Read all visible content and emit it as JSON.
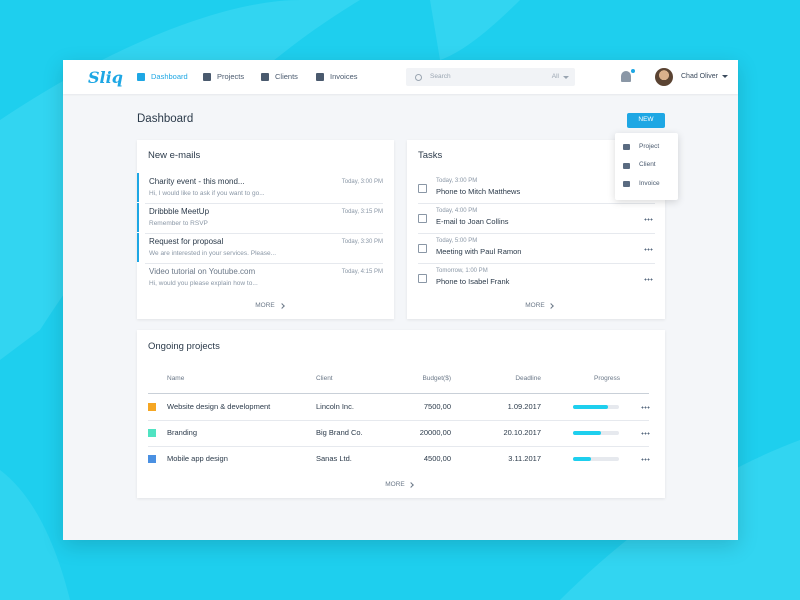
{
  "header": {
    "logo": "Sliq",
    "nav": [
      "Dashboard",
      "Projects",
      "Clients",
      "Invoices"
    ],
    "search_placeholder": "Search",
    "search_filter": "All",
    "user": "Chad Oliver"
  },
  "page_title": "Dashboard",
  "new_button": "NEW",
  "new_menu": [
    "Project",
    "Client",
    "Invoice"
  ],
  "emails": {
    "title": "New e-mails",
    "more": "MORE",
    "items": [
      {
        "subject": "Charity event - this mond...",
        "preview": "Hi, I would like to ask if you want to go...",
        "time": "Today, 3:00 PM",
        "unread": true
      },
      {
        "subject": "Dribbble MeetUp",
        "preview": "Remember to RSVP",
        "time": "Today, 3:15 PM",
        "unread": true
      },
      {
        "subject": "Request for proposal",
        "preview": "We are interested in your services. Please...",
        "time": "Today, 3:30 PM",
        "unread": true
      },
      {
        "subject": "Video tutorial on Youtube.com",
        "preview": "Hi, would you please explain how to...",
        "time": "Today, 4:15 PM",
        "unread": false
      }
    ]
  },
  "tasks": {
    "title": "Tasks",
    "more": "MORE",
    "items": [
      {
        "time": "Today, 3:00 PM",
        "label": "Phone to Mitch Matthews"
      },
      {
        "time": "Today, 4:00 PM",
        "label": "E-mail to Joan Collins"
      },
      {
        "time": "Today, 5:00 PM",
        "label": "Meeting with Paul Ramon"
      },
      {
        "time": "Tomorrow, 1:00 PM",
        "label": "Phone to Isabel Frank"
      }
    ]
  },
  "projects": {
    "title": "Ongoing projects",
    "more": "MORE",
    "columns": [
      "Name",
      "Client",
      "Budget($)",
      "Deadline",
      "Progress"
    ],
    "rows": [
      {
        "name": "Website design & development",
        "client": "Lincoln Inc.",
        "budget": "7500,00",
        "deadline": "1.09.2017",
        "progress": 75,
        "color": "#f5a623"
      },
      {
        "name": "Branding",
        "client": "Big Brand Co.",
        "budget": "20000,00",
        "deadline": "20.10.2017",
        "progress": 60,
        "color": "#50e3c2"
      },
      {
        "name": "Mobile app design",
        "client": "Sanas Ltd.",
        "budget": "4500,00",
        "deadline": "3.11.2017",
        "progress": 40,
        "color": "#4a90e2"
      }
    ]
  }
}
